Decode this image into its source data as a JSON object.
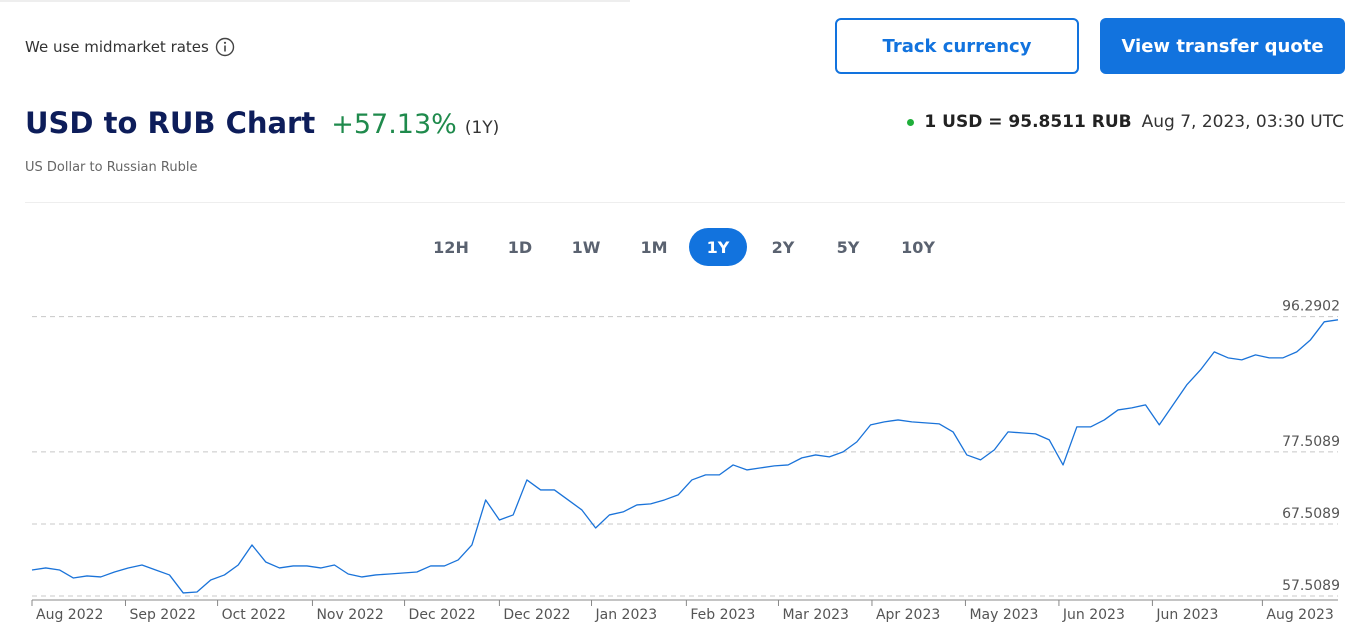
{
  "header": {
    "note": "We use midmarket rates",
    "buttons": [
      "Track currency",
      "View transfer quote"
    ]
  },
  "title": "USD to RUB Chart",
  "change": "+57.13%",
  "period": "(1Y)",
  "subtitle": "US Dollar to Russian Ruble",
  "rate": "1 USD = 95.8511 RUB",
  "timestamp": "Aug 7, 2023, 03:30 UTC",
  "ranges": [
    "12H",
    "1D",
    "1W",
    "1M",
    "1Y",
    "2Y",
    "5Y",
    "10Y"
  ],
  "active_range": 4,
  "chart_data": {
    "type": "line",
    "color": "#1a73d9",
    "grid": true,
    "values": [
      61.12,
      61.4,
      61.12,
      60.01,
      60.29,
      60.15,
      60.84,
      61.4,
      61.81,
      61.12,
      60.43,
      57.93,
      58.06,
      59.73,
      60.43,
      61.81,
      64.59,
      62.23,
      61.4,
      61.68,
      61.68,
      61.4,
      61.81,
      60.56,
      60.15,
      60.43,
      60.56,
      60.7,
      60.84,
      61.68,
      61.68,
      62.51,
      64.59,
      70.84,
      68.06,
      68.76,
      73.62,
      72.23,
      72.23,
      70.84,
      69.45,
      66.95,
      68.76,
      69.18,
      70.15,
      70.29,
      70.84,
      71.54,
      73.62,
      74.32,
      74.32,
      75.7,
      75.01,
      75.29,
      75.57,
      75.7,
      76.68,
      77.09,
      76.82,
      77.51,
      78.9,
      81.26,
      81.68,
      81.95,
      81.68,
      81.54,
      81.4,
      80.29,
      77.09,
      76.4,
      77.79,
      80.29,
      80.15,
      80.01,
      79.18,
      75.7,
      80.98,
      80.98,
      81.95,
      83.34,
      83.62,
      84.04,
      81.26,
      84.04,
      86.82,
      88.9,
      91.4,
      90.57,
      90.29,
      90.98,
      90.57,
      90.57,
      91.4,
      93.07,
      95.57,
      95.8511
    ],
    "xlim": [
      0,
      95
    ],
    "xticks": [
      {
        "value": 0,
        "label": "Aug 2022"
      },
      {
        "value": 6.8,
        "label": "Sep 2022"
      },
      {
        "value": 13.5,
        "label": "Oct 2022"
      },
      {
        "value": 20.4,
        "label": "Nov 2022"
      },
      {
        "value": 27.1,
        "label": "Dec 2022"
      },
      {
        "value": 34.0,
        "label": "Dec 2022"
      },
      {
        "value": 40.7,
        "label": "Jan 2023"
      },
      {
        "value": 47.6,
        "label": "Feb 2023"
      },
      {
        "value": 54.3,
        "label": "Mar 2023"
      },
      {
        "value": 61.1,
        "label": "Apr 2023"
      },
      {
        "value": 67.9,
        "label": "May 2023"
      },
      {
        "value": 74.7,
        "label": "Jun 2023"
      },
      {
        "value": 81.5,
        "label": "Jun 2023"
      },
      {
        "value": 89.5,
        "label": "Aug 2023"
      }
    ],
    "ylim": [
      56.95,
      98.6
    ],
    "yticks": [
      57.5089,
      67.5089,
      77.5089,
      96.2902
    ]
  }
}
